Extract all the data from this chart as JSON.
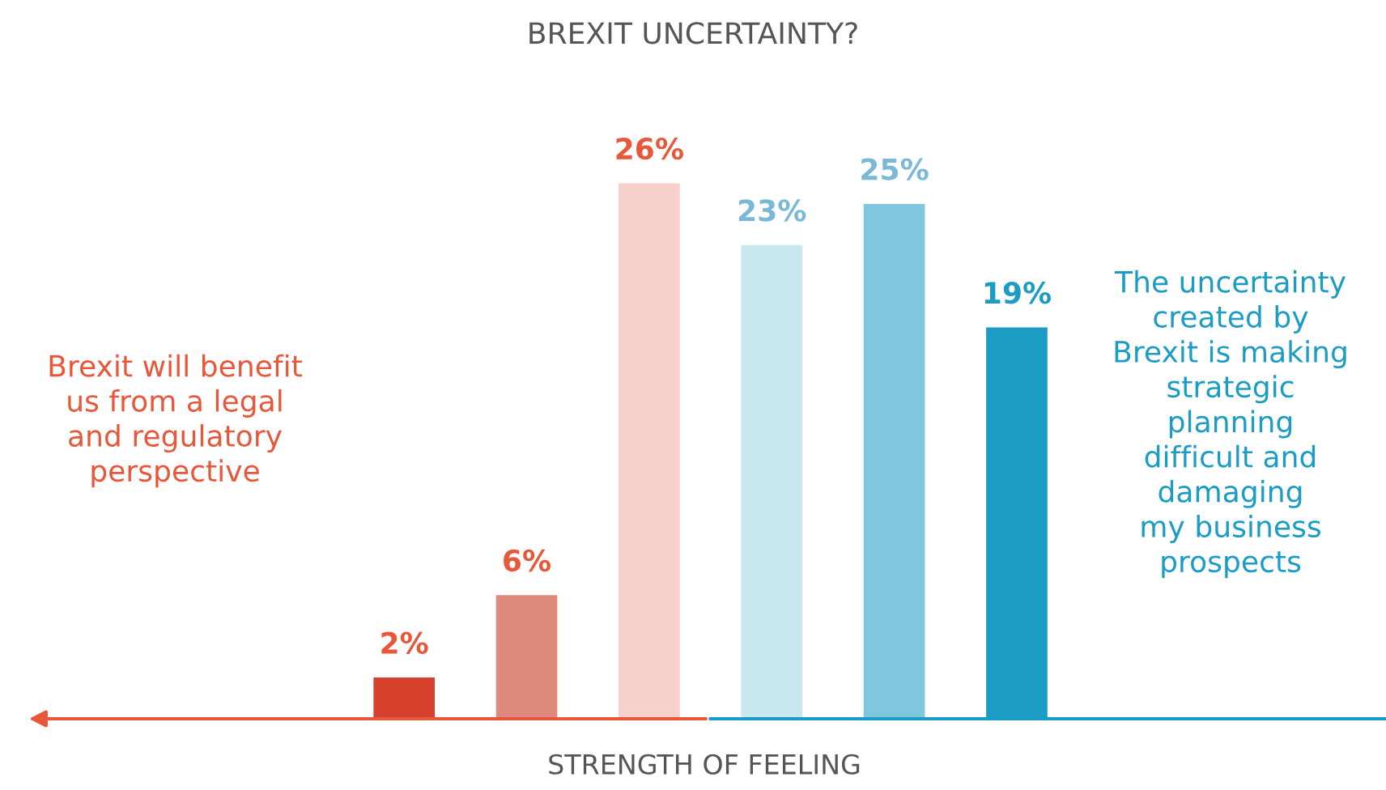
{
  "chart_data": {
    "type": "bar",
    "title": "BREXIT UNCERTAINTY?",
    "xlabel": "STRENGTH OF FEELING",
    "categories": [
      null,
      null,
      null,
      null,
      null,
      null
    ],
    "values": [
      2,
      6,
      26,
      23,
      25,
      19
    ],
    "colors": [
      "#d8402e",
      "#e08a7e",
      "#f6d0ca",
      "#c9e7f0",
      "#7fc7df",
      "#1b9cc4"
    ],
    "value_labels": [
      "2%",
      "6%",
      "26%",
      "23%",
      "25%",
      "19%"
    ],
    "annotations": [
      "Brexit will benefit\nus from a legal\nand regulatory\nperspective",
      "The uncertainty\ncreated by\nBrexit is making\nstrategic\nplanning\ndifficult and\ndamaging\nmy business\nprospects"
    ]
  }
}
